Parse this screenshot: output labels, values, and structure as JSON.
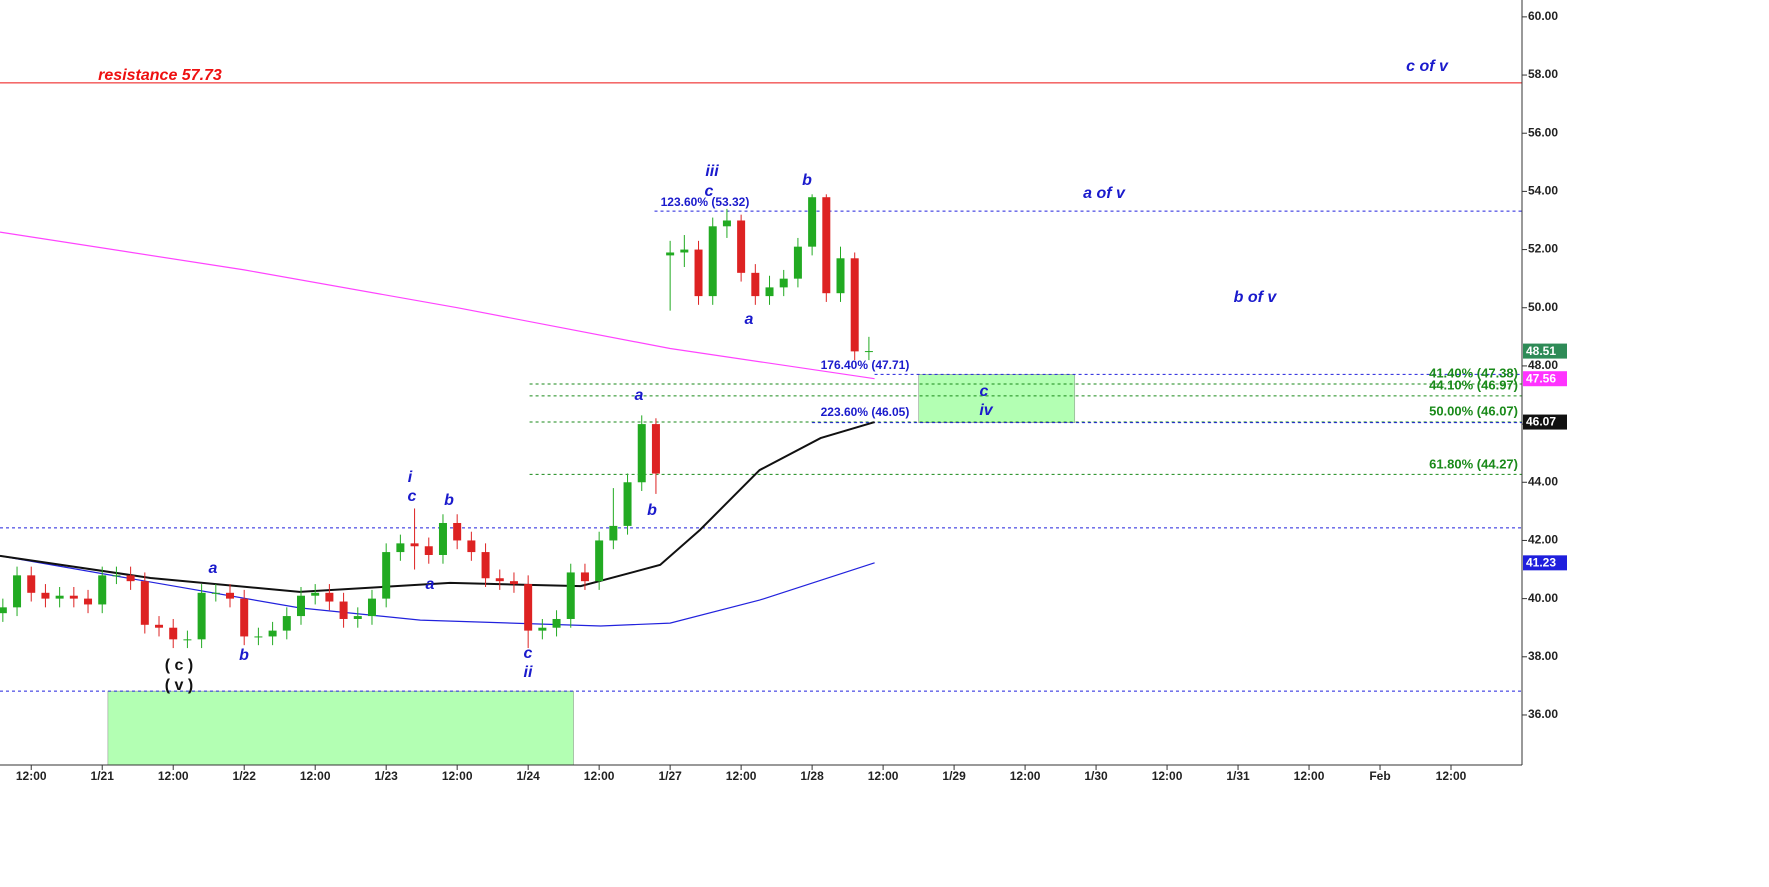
{
  "chart_data": {
    "type": "candlestick",
    "xlim": [
      0.28,
      11
    ],
    "ylim": [
      34.28,
      60.58
    ],
    "xticks": [
      {
        "value": 0.5,
        "label": "12:00"
      },
      {
        "value": 1,
        "label": "1/21"
      },
      {
        "value": 1.5,
        "label": "12:00"
      },
      {
        "value": 2,
        "label": "1/22"
      },
      {
        "value": 2.5,
        "label": "12:00"
      },
      {
        "value": 3,
        "label": "1/23"
      },
      {
        "value": 3.5,
        "label": "12:00"
      },
      {
        "value": 4,
        "label": "1/24"
      },
      {
        "value": 4.5,
        "label": "12:00"
      },
      {
        "value": 5,
        "label": "1/27"
      },
      {
        "value": 5.5,
        "label": "12:00"
      },
      {
        "value": 6,
        "label": "1/28"
      },
      {
        "value": 6.5,
        "label": "12:00"
      },
      {
        "value": 7,
        "label": "1/29"
      },
      {
        "value": 7.5,
        "label": "12:00"
      },
      {
        "value": 8,
        "label": "1/30"
      },
      {
        "value": 8.5,
        "label": "12:00"
      },
      {
        "value": 9,
        "label": "1/31"
      },
      {
        "value": 9.5,
        "label": "12:00"
      },
      {
        "value": 10,
        "label": "Feb"
      },
      {
        "value": 10.5,
        "label": "12:00"
      }
    ],
    "yticks": [
      {
        "value": 36,
        "label": "36.00"
      },
      {
        "value": 38,
        "label": "38.00"
      },
      {
        "value": 40,
        "label": "40.00"
      },
      {
        "value": 42,
        "label": "42.00"
      },
      {
        "value": 44,
        "label": "44.00"
      },
      {
        "value": 46,
        "label": "46.00"
      },
      {
        "value": 48,
        "label": "48.00"
      },
      {
        "value": 50,
        "label": "50.00"
      },
      {
        "value": 52,
        "label": "52.00"
      },
      {
        "value": 54,
        "label": "54.00"
      },
      {
        "value": 56,
        "label": "56.00"
      },
      {
        "value": 58,
        "label": "58.00"
      },
      {
        "value": 60,
        "label": "60.00"
      }
    ],
    "candles": {
      "up_color": "#22aa22",
      "down_color": "#dd2222",
      "x": [
        0.3,
        0.4,
        0.5,
        0.6,
        0.7,
        0.8,
        0.9,
        1.0,
        1.1,
        1.2,
        1.3,
        1.4,
        1.5,
        1.6,
        1.7,
        1.8,
        1.9,
        2.0,
        2.1,
        2.2,
        2.3,
        2.4,
        2.5,
        2.6,
        2.7,
        2.8,
        2.9,
        3.0,
        3.1,
        3.2,
        3.3,
        3.4,
        3.5,
        3.6,
        3.7,
        3.8,
        3.9,
        4.0,
        4.1,
        4.2,
        4.3,
        4.4,
        4.5,
        4.6,
        4.7,
        4.8,
        4.9,
        5.0,
        5.1,
        5.2,
        5.3,
        5.4,
        5.5,
        5.6,
        5.7,
        5.8,
        5.9,
        6.0,
        6.1,
        6.2,
        6.3,
        6.4
      ],
      "open": [
        39.5,
        39.7,
        40.8,
        40.2,
        40.0,
        40.1,
        40.0,
        39.8,
        40.8,
        40.8,
        40.6,
        39.1,
        39.0,
        38.6,
        38.6,
        40.2,
        40.2,
        40.0,
        38.7,
        38.7,
        38.9,
        39.4,
        40.1,
        40.2,
        39.9,
        39.3,
        39.4,
        40.0,
        41.6,
        41.9,
        41.8,
        41.5,
        42.6,
        42.0,
        41.6,
        40.7,
        40.6,
        40.5,
        38.9,
        39.0,
        39.3,
        40.9,
        40.6,
        42.0,
        42.5,
        44.0,
        46.0,
        51.8,
        51.9,
        52.0,
        50.4,
        52.8,
        53.0,
        51.2,
        50.4,
        50.7,
        51.0,
        52.1,
        53.8,
        50.5,
        51.7,
        48.5
      ],
      "high": [
        40.0,
        41.1,
        41.1,
        40.5,
        40.4,
        40.4,
        40.3,
        41.1,
        41.1,
        41.1,
        40.9,
        39.4,
        39.3,
        38.9,
        40.5,
        40.5,
        40.5,
        40.3,
        39.0,
        39.2,
        39.7,
        40.4,
        40.5,
        40.5,
        40.2,
        39.7,
        40.3,
        41.9,
        42.2,
        43.1,
        42.1,
        42.9,
        42.9,
        42.3,
        41.9,
        41.0,
        40.9,
        40.8,
        39.3,
        39.6,
        41.2,
        41.2,
        42.3,
        43.8,
        44.3,
        46.3,
        46.2,
        52.3,
        52.5,
        52.3,
        53.1,
        53.4,
        53.2,
        51.5,
        51.1,
        51.3,
        52.4,
        53.9,
        53.9,
        52.1,
        51.9,
        49.0
      ],
      "low": [
        39.2,
        39.4,
        39.9,
        39.7,
        39.7,
        39.7,
        39.5,
        39.5,
        40.5,
        40.3,
        38.8,
        38.7,
        38.3,
        38.3,
        38.3,
        39.9,
        39.7,
        38.4,
        38.4,
        38.4,
        38.6,
        39.1,
        39.8,
        39.6,
        39.0,
        39.0,
        39.1,
        39.7,
        41.3,
        41.0,
        41.2,
        41.2,
        41.7,
        41.3,
        40.4,
        40.3,
        40.2,
        38.3,
        38.6,
        38.7,
        39.0,
        40.3,
        40.3,
        41.7,
        42.2,
        43.7,
        43.6,
        49.9,
        51.4,
        50.1,
        50.1,
        52.4,
        50.9,
        50.1,
        50.1,
        50.4,
        50.7,
        51.8,
        50.2,
        50.2,
        48.2,
        48.2
      ],
      "close": [
        39.7,
        40.8,
        40.2,
        40.0,
        40.1,
        40.0,
        39.8,
        40.8,
        40.8,
        40.6,
        39.1,
        39.0,
        38.6,
        38.6,
        40.2,
        40.2,
        40.0,
        38.7,
        38.7,
        38.9,
        39.4,
        40.1,
        40.2,
        39.9,
        39.3,
        39.4,
        40.0,
        41.6,
        41.9,
        41.8,
        41.5,
        42.6,
        42.0,
        41.6,
        40.7,
        40.6,
        40.5,
        38.9,
        39.0,
        39.3,
        40.9,
        40.6,
        42.0,
        42.5,
        44.0,
        46.0,
        44.3,
        51.9,
        52.0,
        50.4,
        52.8,
        53.0,
        51.2,
        50.4,
        50.7,
        51.0,
        52.1,
        53.8,
        50.5,
        51.7,
        48.5,
        48.51
      ]
    },
    "lines": [
      {
        "color": "#ff44ff",
        "x": [
          0.28,
          2.0,
          3.5,
          5.0,
          6.44
        ],
        "values": [
          52.6,
          51.3,
          50.0,
          48.6,
          47.56
        ]
      },
      {
        "color": "#2222dd",
        "x": [
          0.28,
          2.39,
          3.24,
          4.51,
          5.0,
          5.63,
          6.44
        ],
        "values": [
          41.47,
          39.68,
          39.26,
          39.06,
          39.16,
          39.95,
          41.23
        ]
      },
      {
        "color": "#111111",
        "x": [
          0.28,
          1.34,
          2.39,
          3.45,
          4.37,
          4.93,
          5.21,
          5.63,
          6.06,
          6.44
        ],
        "values": [
          41.47,
          40.71,
          40.23,
          40.54,
          40.43,
          41.16,
          42.36,
          44.42,
          45.52,
          46.07
        ]
      }
    ],
    "levels": [
      {
        "value": 57.73,
        "start": 0.28,
        "color": "#ee1111",
        "style": "solid"
      },
      {
        "value": 53.32,
        "start": 4.89,
        "color": "#2222dd",
        "style": "dotted"
      },
      {
        "value": 47.71,
        "start": 6.44,
        "color": "#2222dd",
        "style": "dotted"
      },
      {
        "value": 47.38,
        "start": 4.01,
        "color": "#1a8a1a",
        "style": "dotted"
      },
      {
        "value": 46.97,
        "start": 4.01,
        "color": "#1a8a1a",
        "style": "dotted"
      },
      {
        "value": 46.07,
        "start": 4.01,
        "color": "#1a8a1a",
        "style": "dotted"
      },
      {
        "value": 46.05,
        "start": 6.0,
        "color": "#2222dd",
        "style": "dotted"
      },
      {
        "value": 44.27,
        "start": 4.01,
        "color": "#1a8a1a",
        "style": "dotted"
      },
      {
        "value": 42.43,
        "start": 0.28,
        "color": "#2222dd",
        "style": "dotted"
      },
      {
        "value": 36.82,
        "start": 0.28,
        "color": "#2222dd",
        "style": "dotted"
      }
    ],
    "zones": [
      {
        "color": "#b3ffb3",
        "x": [
          1.04,
          4.32
        ],
        "y": [
          34.28,
          36.82
        ]
      },
      {
        "color": "#b3ffb3",
        "x": [
          6.75,
          7.85
        ],
        "y": [
          46.05,
          47.71
        ]
      }
    ],
    "price_tags": [
      {
        "value": 48.51,
        "color": "#2e8b57"
      },
      {
        "value": 47.56,
        "color": "#ff33ff"
      },
      {
        "value": 46.07,
        "color": "#111111"
      },
      {
        "value": 41.23,
        "color": "#1f1fdd"
      }
    ],
    "annotations": [
      {
        "text": "resistance 57.73",
        "color": "#ee1111"
      },
      {
        "text": "c of v",
        "color": "#1a1acc"
      },
      {
        "text": "a of v",
        "color": "#1a1acc"
      },
      {
        "text": "b of v",
        "color": "#1a1acc"
      },
      {
        "text": "iii",
        "color": "#1a1acc"
      },
      {
        "text": "c",
        "color": "#1a1acc"
      },
      {
        "text": "b",
        "color": "#1a1acc"
      },
      {
        "text": "123.60% (53.32)",
        "color": "#1a1acc"
      },
      {
        "text": "a",
        "color": "#1a1acc"
      },
      {
        "text": "176.40% (47.71)",
        "color": "#1a1acc"
      },
      {
        "text": "223.60% (46.05)",
        "color": "#1a1acc"
      },
      {
        "text": "a",
        "color": "#1a1acc"
      },
      {
        "text": "b",
        "color": "#1a1acc"
      },
      {
        "text": "c",
        "color": "#1a1acc"
      },
      {
        "text": "iv",
        "color": "#1a1acc"
      },
      {
        "text": "i",
        "color": "#1a1acc"
      },
      {
        "text": "c",
        "color": "#1a1acc"
      },
      {
        "text": "b",
        "color": "#1a1acc"
      },
      {
        "text": "a",
        "color": "#1a1acc"
      },
      {
        "text": "a",
        "color": "#1a1acc"
      },
      {
        "text": "b",
        "color": "#1a1acc"
      },
      {
        "text": "c",
        "color": "#1a1acc"
      },
      {
        "text": "ii",
        "color": "#1a1acc"
      },
      {
        "text": "( c )",
        "color": "#111111"
      },
      {
        "text": "( v )",
        "color": "#111111"
      },
      {
        "text": "41.40% (47.38)",
        "color": "#1a8a1a"
      },
      {
        "text": "44.10% (46.97)",
        "color": "#1a8a1a"
      },
      {
        "text": "50.00% (46.07)",
        "color": "#1a8a1a"
      },
      {
        "text": "61.80% (44.27)",
        "color": "#1a8a1a"
      }
    ]
  }
}
